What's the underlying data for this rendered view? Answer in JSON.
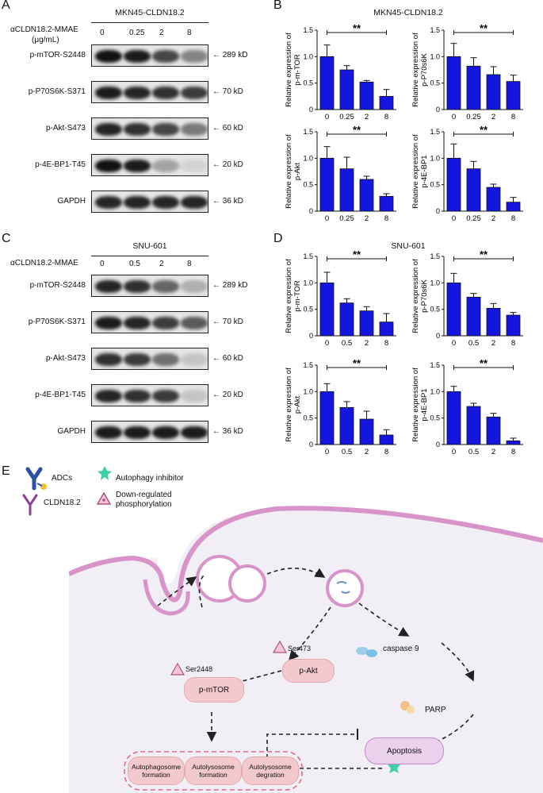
{
  "panels": {
    "A": "A",
    "B": "B",
    "C": "C",
    "D": "D",
    "E": "E"
  },
  "blot_A": {
    "cell_line": "MKN45-CLDN18.2",
    "treatment_label": "αCLDN18.2-MMAE",
    "unit_label": "(μg/mL)",
    "concentrations": [
      "0",
      "0.25",
      "2",
      "8"
    ],
    "proteins": [
      "p-mTOR-S2448",
      "p-P70S6K-S371",
      "p-Akt-S473",
      "p-4E-BP1-T45",
      "GAPDH"
    ],
    "sizes": [
      "289 kD",
      "70 kD",
      "60 kD",
      "20 kD",
      "36 kD"
    ],
    "band_intensity": [
      [
        1.0,
        0.95,
        0.75,
        0.45
      ],
      [
        0.95,
        0.9,
        0.85,
        0.8
      ],
      [
        0.9,
        0.85,
        0.75,
        0.5
      ],
      [
        1.0,
        0.95,
        0.3,
        0.08
      ],
      [
        0.9,
        0.9,
        0.9,
        0.9
      ]
    ]
  },
  "blot_C": {
    "cell_line": "SNU-601",
    "treatment_label": "αCLDN18.2-MMAE",
    "concentrations": [
      "0",
      "0.5",
      "2",
      "8"
    ],
    "proteins": [
      "p-mTOR-S2448",
      "p-P70S6K-S371",
      "p-Akt-S473",
      "p-4E-BP1-T45",
      "GAPDH"
    ],
    "sizes": [
      "289 kD",
      "70 kD",
      "60 kD",
      "20 kD",
      "36 kD"
    ],
    "band_intensity": [
      [
        0.9,
        0.85,
        0.6,
        0.25
      ],
      [
        0.95,
        0.9,
        0.8,
        0.65
      ],
      [
        0.85,
        0.8,
        0.55,
        0.15
      ],
      [
        0.9,
        0.85,
        0.8,
        0.15
      ],
      [
        0.95,
        0.95,
        0.95,
        0.95
      ]
    ]
  },
  "chart_titles": {
    "B": "MKN45-CLDN18.2",
    "D": "SNU-601"
  },
  "chart_data": [
    {
      "type": "bar",
      "panel": "B",
      "ylabel": "Relative expression of p-m-TOR",
      "categories": [
        "0",
        "0.25",
        "2",
        "8"
      ],
      "values": [
        1.0,
        0.75,
        0.52,
        0.25
      ],
      "errors": [
        0.22,
        0.08,
        0.03,
        0.13
      ],
      "ylim": [
        0,
        1.5
      ],
      "yticks": [
        "0",
        "0.5",
        "1.0",
        "1.5"
      ],
      "significance": "**"
    },
    {
      "type": "bar",
      "panel": "B",
      "ylabel": "Relative expression of p-P70s6K",
      "categories": [
        "0",
        "0.25",
        "2",
        "8"
      ],
      "values": [
        1.0,
        0.82,
        0.66,
        0.53
      ],
      "errors": [
        0.25,
        0.16,
        0.15,
        0.12
      ],
      "ylim": [
        0,
        1.5
      ],
      "yticks": [
        "0",
        "0.5",
        "1.0",
        "1.5"
      ],
      "significance": "**"
    },
    {
      "type": "bar",
      "panel": "B",
      "ylabel": "Relative expression of p-Akt",
      "categories": [
        "0",
        "0.25",
        "2",
        "8"
      ],
      "values": [
        1.0,
        0.8,
        0.6,
        0.28
      ],
      "errors": [
        0.22,
        0.22,
        0.06,
        0.05
      ],
      "ylim": [
        0,
        1.5
      ],
      "yticks": [
        "0",
        "0.5",
        "1.0",
        "1.5"
      ],
      "significance": "**"
    },
    {
      "type": "bar",
      "panel": "B",
      "ylabel": "Relative expression of p-4E-BP1",
      "categories": [
        "0",
        "0.25",
        "2",
        "8"
      ],
      "values": [
        1.0,
        0.8,
        0.45,
        0.17
      ],
      "errors": [
        0.27,
        0.14,
        0.06,
        0.09
      ],
      "ylim": [
        0,
        1.5
      ],
      "yticks": [
        "0",
        "0.5",
        "1.0",
        "1.5"
      ],
      "significance": "**"
    },
    {
      "type": "bar",
      "panel": "D",
      "ylabel": "Relative expression of p-m-TOR",
      "categories": [
        "0",
        "0.5",
        "2",
        "8"
      ],
      "values": [
        1.0,
        0.62,
        0.47,
        0.26
      ],
      "errors": [
        0.2,
        0.08,
        0.08,
        0.16
      ],
      "ylim": [
        0,
        1.5
      ],
      "yticks": [
        "0",
        "0.5",
        "1.0",
        "1.5"
      ],
      "significance": "**"
    },
    {
      "type": "bar",
      "panel": "D",
      "ylabel": "Relative expression of p-P70s6K",
      "categories": [
        "0",
        "0.5",
        "2",
        "8"
      ],
      "values": [
        1.0,
        0.73,
        0.52,
        0.39
      ],
      "errors": [
        0.18,
        0.07,
        0.09,
        0.05
      ],
      "ylim": [
        0,
        1.5
      ],
      "yticks": [
        "0",
        "0.5",
        "1.0",
        "1.5"
      ],
      "significance": "**"
    },
    {
      "type": "bar",
      "panel": "D",
      "ylabel": "Relative expression of p-Akt",
      "categories": [
        "0",
        "0.5",
        "2",
        "8"
      ],
      "values": [
        1.0,
        0.7,
        0.48,
        0.18
      ],
      "errors": [
        0.15,
        0.11,
        0.15,
        0.1
      ],
      "ylim": [
        0,
        1.5
      ],
      "yticks": [
        "0",
        "0.5",
        "1.0",
        "1.5"
      ],
      "significance": "**"
    },
    {
      "type": "bar",
      "panel": "D",
      "ylabel": "Relative expression of p-4E-BP1",
      "categories": [
        "0",
        "0.5",
        "2",
        "8"
      ],
      "values": [
        1.0,
        0.72,
        0.52,
        0.07
      ],
      "errors": [
        0.1,
        0.06,
        0.07,
        0.05
      ],
      "ylim": [
        0,
        1.5
      ],
      "yticks": [
        "0",
        "0.5",
        "1.0",
        "1.5"
      ],
      "significance": "**"
    }
  ],
  "colors": {
    "bar": "#1515e0",
    "membrane": "#d894c8",
    "cell_bg": "#f1eef6",
    "node_pink": "#f3c9cd",
    "node_lav": "#ead1ec"
  },
  "legend": {
    "adcs": "ADCs",
    "claudin": "CLDN18.2",
    "inhibitor": "Autophagy inhibitor",
    "down_reg": "Down-regulated phosphorylation"
  },
  "pathway": {
    "ser473": "Ser473",
    "ser2448": "Ser2448",
    "pakt": "p-Akt",
    "pmtor": "p-mTOR",
    "caspase": "caspase 9",
    "parp": "PARP",
    "apoptosis": "Apoptosis",
    "autophagy_steps": [
      "Autophagosome formation",
      "Autolysosome formation",
      "Autolysosome degration"
    ]
  }
}
